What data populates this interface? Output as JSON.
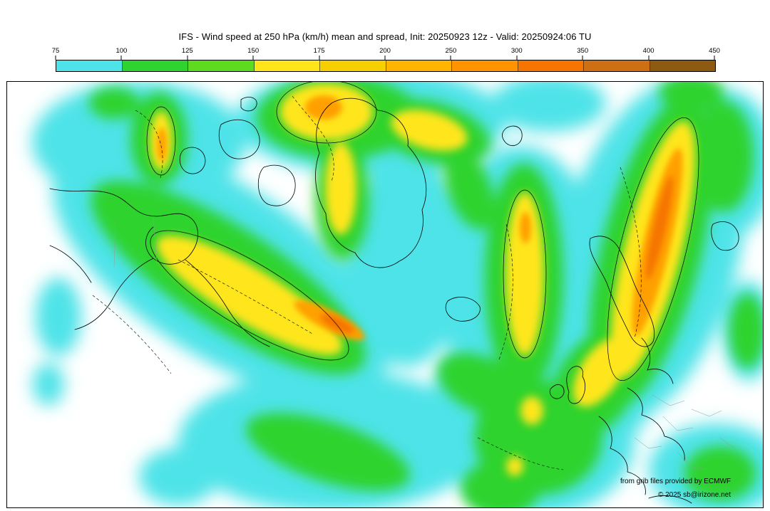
{
  "title": "IFS - Wind speed at 250 hPa (km/h) mean and spread, Init: 20250923 12z - Valid: 20250924:06 TU",
  "colorbar": {
    "unit": "km/h",
    "ticks": [
      "75",
      "100",
      "125",
      "150",
      "175",
      "200",
      "250",
      "300",
      "350",
      "400",
      "450"
    ],
    "colors": [
      "#4DE3E8",
      "#2FD32F",
      "#5FDB1F",
      "#FFE51A",
      "#F5CF00",
      "#FFB400",
      "#FF9400",
      "#F57500",
      "#CE6F14",
      "#8C5A10"
    ]
  },
  "map": {
    "attribution_line1": "from grib files provided by ECMWF",
    "attribution_line2": "© 2025 sb@irizone.net",
    "fill_colors": {
      "cyan": "#4DE3E8",
      "green": "#2FD32F",
      "yellow": "#FFE51A",
      "orange": "#FFA000",
      "deep_orange": "#F57500"
    }
  },
  "chart_data": {
    "type": "heatmap",
    "title": "IFS - Wind speed at 250 hPa (km/h) mean and spread",
    "variable": "Wind speed at 250 hPa",
    "units": "km/h",
    "init": "20250923 12z",
    "valid": "20250924:06 TU",
    "scale_breaks": [
      75,
      100,
      125,
      150,
      175,
      200,
      250,
      300,
      350,
      400,
      450
    ],
    "legend_position": "top"
  }
}
